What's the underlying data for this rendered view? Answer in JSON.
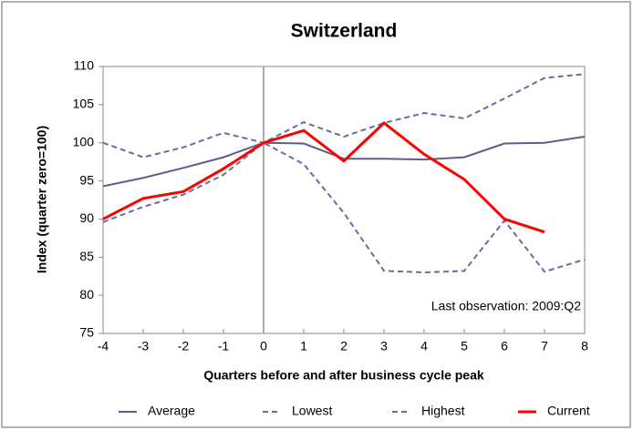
{
  "chart_data": {
    "type": "line",
    "title": "Switzerland",
    "xlabel": "Quarters before and after business cycle peak",
    "ylabel": "Index (quarter zero=100)",
    "annotation": "Last observation: 2009:Q2",
    "x": [
      -4,
      -3,
      -2,
      -1,
      0,
      1,
      2,
      3,
      4,
      5,
      6,
      7,
      8
    ],
    "xlim": [
      -4,
      8
    ],
    "xticks": [
      -4,
      -3,
      -2,
      -1,
      0,
      1,
      2,
      3,
      4,
      5,
      6,
      7,
      8
    ],
    "ylim": [
      75,
      110
    ],
    "yticks": [
      75,
      80,
      85,
      90,
      95,
      100,
      105,
      110
    ],
    "vline": 0,
    "legend": "bottom",
    "series": [
      {
        "name": "Average",
        "color": "#5a5d8e",
        "dash": false,
        "values": [
          94.3,
          95.4,
          96.7,
          98.1,
          100,
          99.9,
          97.9,
          97.9,
          97.8,
          98.1,
          99.9,
          100,
          100.8
        ]
      },
      {
        "name": "Lowest",
        "color": "#6a6ca0",
        "dash": true,
        "values": [
          89.6,
          91.6,
          93.2,
          95.8,
          100,
          97.2,
          90.8,
          83.2,
          83,
          83.2,
          89.8,
          83.1,
          84.7
        ]
      },
      {
        "name": "Highest",
        "color": "#6a6ca0",
        "dash": true,
        "values": [
          100,
          98.1,
          99.4,
          101.3,
          100,
          102.7,
          100.8,
          102.6,
          103.9,
          103.2,
          105.8,
          108.5,
          109
        ]
      },
      {
        "name": "Current",
        "color": "#ff0000",
        "dash": false,
        "values": [
          90,
          92.7,
          93.6,
          96.6,
          100,
          101.6,
          97.6,
          102.6,
          98.5,
          95.2,
          90,
          88.3,
          null
        ]
      }
    ]
  }
}
